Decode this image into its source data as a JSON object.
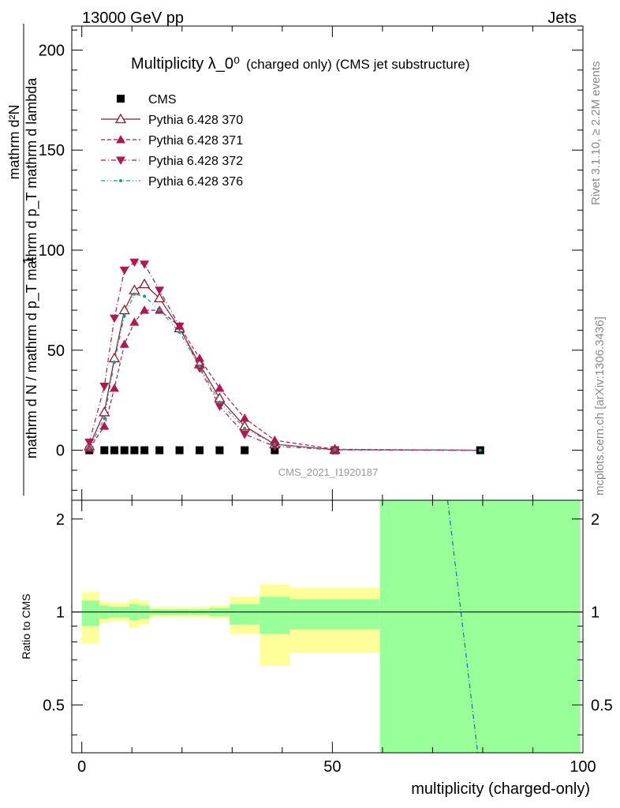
{
  "header": {
    "left": "13000 GeV pp",
    "right": "Jets"
  },
  "side_labels": {
    "top": "Rivet 3.1.10, ≥ 2.2M events",
    "bottom": "mcplots.cern.ch [arXiv:1306.3436]"
  },
  "chart_data": {
    "type": "line",
    "title": "Multiplicity λ_0⁰",
    "title_suffix": "(charged only) (CMS jet substructure)",
    "watermark": "CMS_2021_I1920187",
    "ylabel_main": "1 / mathrm d N / mathrm d p_T mathrm d p_T mathrm d lambda · mathrm d²N",
    "ylabel_num": "mathrm d²N",
    "ylabel_den": "mathrm d N / mathrm d p_T mathrm d p_T mathrm d lambda",
    "ylabel_one": "1",
    "xlabel": "multiplicity (charged-only)",
    "ratio_ylabel": "Ratio to CMS",
    "xlim": [
      -2,
      100
    ],
    "ylim": [
      -25,
      212
    ],
    "ratio_ylim": [
      0.35,
      2.3
    ],
    "x_ticks": [
      "0",
      "50",
      "100"
    ],
    "y_ticks": [
      "0",
      "50",
      "100",
      "150",
      "200"
    ],
    "ratio_ticks": [
      "0.5",
      "1",
      "2"
    ],
    "legend_position": "top-left",
    "x": [
      1.5,
      4.5,
      6.5,
      8.5,
      10.5,
      12.5,
      15.5,
      19.5,
      23.5,
      27.5,
      32.5,
      38.5,
      50.5,
      79.5
    ],
    "series": [
      {
        "name": "CMS",
        "color": "#000000",
        "marker": "square",
        "values": [
          0,
          0,
          0,
          0,
          0,
          0,
          0,
          0,
          0,
          0,
          0,
          0,
          0,
          0
        ]
      },
      {
        "name": "Pythia 6.428 370",
        "color": "#8b1a2a",
        "marker": "open-triangle-up",
        "dash": "solid",
        "values": [
          2,
          19,
          46,
          70,
          80,
          83,
          76,
          61,
          43,
          26,
          12,
          3,
          0.3,
          0
        ]
      },
      {
        "name": "Pythia 6.428 371",
        "color": "#b0184f",
        "marker": "triangle-up",
        "dash": "dashed",
        "values": [
          1,
          12,
          31,
          53,
          64,
          70,
          70,
          62,
          46,
          31,
          16,
          5,
          0.5,
          0
        ]
      },
      {
        "name": "Pythia 6.428 372",
        "color": "#b0184f",
        "marker": "triangle-down",
        "dash": "dashdot",
        "values": [
          4,
          32,
          66,
          90,
          94,
          93,
          80,
          62,
          41,
          22,
          8,
          2,
          0.2,
          0
        ]
      },
      {
        "name": "Pythia 6.428 376",
        "color": "#1a9a8a",
        "marker": "dot",
        "dash": "dashdotted",
        "values": [
          1,
          16,
          44,
          67,
          78,
          77,
          70,
          59,
          42,
          24,
          11,
          3,
          0.3,
          0
        ]
      }
    ],
    "ratio_bands": [
      {
        "x0": 0,
        "x1": 3.5,
        "y_lo": 0.79,
        "y_hi": 1.16,
        "g_lo": 0.9,
        "g_hi": 1.09
      },
      {
        "x0": 3.5,
        "x1": 5.5,
        "y_lo": 0.92,
        "y_hi": 1.08,
        "g_lo": 0.95,
        "g_hi": 1.05
      },
      {
        "x0": 5.5,
        "x1": 7.5,
        "y_lo": 0.93,
        "y_hi": 1.07,
        "g_lo": 0.96,
        "g_hi": 1.04
      },
      {
        "x0": 7.5,
        "x1": 9.5,
        "y_lo": 0.93,
        "y_hi": 1.07,
        "g_lo": 0.96,
        "g_hi": 1.04
      },
      {
        "x0": 9.5,
        "x1": 11.5,
        "y_lo": 0.89,
        "y_hi": 1.1,
        "g_lo": 0.94,
        "g_hi": 1.06
      },
      {
        "x0": 11.5,
        "x1": 13.5,
        "y_lo": 0.91,
        "y_hi": 1.09,
        "g_lo": 0.95,
        "g_hi": 1.05
      },
      {
        "x0": 13.5,
        "x1": 17.5,
        "y_lo": 0.96,
        "y_hi": 1.04,
        "g_lo": 0.98,
        "g_hi": 1.02
      },
      {
        "x0": 17.5,
        "x1": 21.5,
        "y_lo": 0.96,
        "y_hi": 1.04,
        "g_lo": 0.98,
        "g_hi": 1.02
      },
      {
        "x0": 21.5,
        "x1": 25.5,
        "y_lo": 0.96,
        "y_hi": 1.04,
        "g_lo": 0.98,
        "g_hi": 1.02
      },
      {
        "x0": 25.5,
        "x1": 29.5,
        "y_lo": 0.95,
        "y_hi": 1.05,
        "g_lo": 0.97,
        "g_hi": 1.03
      },
      {
        "x0": 29.5,
        "x1": 35.5,
        "y_lo": 0.85,
        "y_hi": 1.12,
        "g_lo": 0.91,
        "g_hi": 1.06
      },
      {
        "x0": 35.5,
        "x1": 41.5,
        "y_lo": 0.67,
        "y_hi": 1.23,
        "g_lo": 0.85,
        "g_hi": 1.12
      },
      {
        "x0": 41.5,
        "x1": 59.5,
        "y_lo": 0.74,
        "y_hi": 1.2,
        "g_lo": 0.88,
        "g_hi": 1.1
      },
      {
        "x0": 59.5,
        "x1": 99.5,
        "y_lo": 0.35,
        "y_hi": 2.3,
        "g_lo": 0.35,
        "g_hi": 2.3
      }
    ],
    "ratio_line_376": [
      [
        73,
        2.3
      ],
      [
        79,
        0.35
      ]
    ],
    "colors": {
      "yellow_band": "#ffff99",
      "green_band": "#99ff99"
    }
  }
}
